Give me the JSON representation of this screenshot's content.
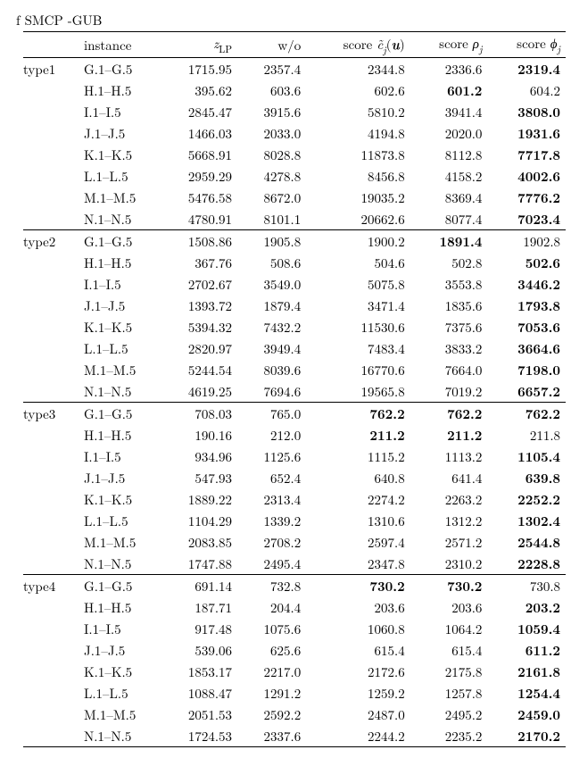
{
  "caption_fragment": "f SMCP -GUB",
  "headers": {
    "blank": "",
    "instance": "instance",
    "zlp_html": "<span class='ital'>z</span><span class='sub'>LP</span>",
    "wo": "w/o",
    "score_c_html": "score <span class='ital'>c̃</span><span class='sub ital'>j</span>(<span class='ital'><b>u</b></span>)",
    "score_rho_html": "score <span class='ital'>ρ</span><span class='sub ital'>j</span>",
    "score_phi_html": "score <span class='ital'>ϕ</span><span class='sub ital'>j</span>"
  },
  "groups": [
    {
      "type": "type1",
      "rows": [
        {
          "inst": "G.1–G.5",
          "zlp": "1715.95",
          "wo": "2357.4",
          "c": "2344.8",
          "rho": "2336.6",
          "phi": "2319.4",
          "b": [
            "phi"
          ]
        },
        {
          "inst": "H.1–H.5",
          "zlp": "395.62",
          "wo": "603.6",
          "c": "602.6",
          "rho": "601.2",
          "phi": "604.2",
          "b": [
            "rho"
          ]
        },
        {
          "inst": "I.1–I.5",
          "zlp": "2845.47",
          "wo": "3915.6",
          "c": "5810.2",
          "rho": "3941.4",
          "phi": "3808.0",
          "b": [
            "phi"
          ]
        },
        {
          "inst": "J.1–J.5",
          "zlp": "1466.03",
          "wo": "2033.0",
          "c": "4194.8",
          "rho": "2020.0",
          "phi": "1931.6",
          "b": [
            "phi"
          ]
        },
        {
          "inst": "K.1–K.5",
          "zlp": "5668.91",
          "wo": "8028.8",
          "c": "11873.8",
          "rho": "8112.8",
          "phi": "7717.8",
          "b": [
            "phi"
          ]
        },
        {
          "inst": "L.1–L.5",
          "zlp": "2959.29",
          "wo": "4278.8",
          "c": "8456.8",
          "rho": "4158.2",
          "phi": "4002.6",
          "b": [
            "phi"
          ]
        },
        {
          "inst": "M.1–M.5",
          "zlp": "5476.58",
          "wo": "8672.0",
          "c": "19035.2",
          "rho": "8369.4",
          "phi": "7776.2",
          "b": [
            "phi"
          ]
        },
        {
          "inst": "N.1–N.5",
          "zlp": "4780.91",
          "wo": "8101.1",
          "c": "20662.6",
          "rho": "8077.4",
          "phi": "7023.4",
          "b": [
            "phi"
          ]
        }
      ]
    },
    {
      "type": "type2",
      "rows": [
        {
          "inst": "G.1–G.5",
          "zlp": "1508.86",
          "wo": "1905.8",
          "c": "1900.2",
          "rho": "1891.4",
          "phi": "1902.8",
          "b": [
            "rho"
          ]
        },
        {
          "inst": "H.1–H.5",
          "zlp": "367.76",
          "wo": "508.6",
          "c": "504.6",
          "rho": "502.8",
          "phi": "502.6",
          "b": [
            "phi"
          ]
        },
        {
          "inst": "I.1–I.5",
          "zlp": "2702.67",
          "wo": "3549.0",
          "c": "5075.8",
          "rho": "3553.8",
          "phi": "3446.2",
          "b": [
            "phi"
          ]
        },
        {
          "inst": "J.1–J.5",
          "zlp": "1393.72",
          "wo": "1879.4",
          "c": "3471.4",
          "rho": "1835.6",
          "phi": "1793.8",
          "b": [
            "phi"
          ]
        },
        {
          "inst": "K.1–K.5",
          "zlp": "5394.32",
          "wo": "7432.2",
          "c": "11530.6",
          "rho": "7375.6",
          "phi": "7053.6",
          "b": [
            "phi"
          ]
        },
        {
          "inst": "L.1–L.5",
          "zlp": "2820.97",
          "wo": "3949.4",
          "c": "7483.4",
          "rho": "3833.2",
          "phi": "3664.6",
          "b": [
            "phi"
          ]
        },
        {
          "inst": "M.1–M.5",
          "zlp": "5244.54",
          "wo": "8039.6",
          "c": "16770.6",
          "rho": "7664.0",
          "phi": "7198.0",
          "b": [
            "phi"
          ]
        },
        {
          "inst": "N.1–N.5",
          "zlp": "4619.25",
          "wo": "7694.6",
          "c": "19565.8",
          "rho": "7019.2",
          "phi": "6657.2",
          "b": [
            "phi"
          ]
        }
      ]
    },
    {
      "type": "type3",
      "rows": [
        {
          "inst": "G.1–G.5",
          "zlp": "708.03",
          "wo": "765.0",
          "c": "762.2",
          "rho": "762.2",
          "phi": "762.2",
          "b": [
            "c",
            "rho",
            "phi"
          ]
        },
        {
          "inst": "H.1–H.5",
          "zlp": "190.16",
          "wo": "212.0",
          "c": "211.2",
          "rho": "211.2",
          "phi": "211.8",
          "b": [
            "c",
            "rho"
          ]
        },
        {
          "inst": "I.1–I.5",
          "zlp": "934.96",
          "wo": "1125.6",
          "c": "1115.2",
          "rho": "1113.2",
          "phi": "1105.4",
          "b": [
            "phi"
          ]
        },
        {
          "inst": "J.1–J.5",
          "zlp": "547.93",
          "wo": "652.4",
          "c": "640.8",
          "rho": "641.4",
          "phi": "639.8",
          "b": [
            "phi"
          ]
        },
        {
          "inst": "K.1–K.5",
          "zlp": "1889.22",
          "wo": "2313.4",
          "c": "2274.2",
          "rho": "2263.2",
          "phi": "2252.2",
          "b": [
            "phi"
          ]
        },
        {
          "inst": "L.1–L.5",
          "zlp": "1104.29",
          "wo": "1339.2",
          "c": "1310.6",
          "rho": "1312.2",
          "phi": "1302.4",
          "b": [
            "phi"
          ]
        },
        {
          "inst": "M.1–M.5",
          "zlp": "2083.85",
          "wo": "2708.2",
          "c": "2597.4",
          "rho": "2571.2",
          "phi": "2544.8",
          "b": [
            "phi"
          ]
        },
        {
          "inst": "N.1–N.5",
          "zlp": "1747.88",
          "wo": "2495.4",
          "c": "2347.8",
          "rho": "2310.2",
          "phi": "2228.8",
          "b": [
            "phi"
          ]
        }
      ]
    },
    {
      "type": "type4",
      "rows": [
        {
          "inst": "G.1–G.5",
          "zlp": "691.14",
          "wo": "732.8",
          "c": "730.2",
          "rho": "730.2",
          "phi": "730.8",
          "b": [
            "c",
            "rho"
          ]
        },
        {
          "inst": "H.1–H.5",
          "zlp": "187.71",
          "wo": "204.4",
          "c": "203.6",
          "rho": "203.6",
          "phi": "203.2",
          "b": [
            "phi"
          ]
        },
        {
          "inst": "I.1–I.5",
          "zlp": "917.48",
          "wo": "1075.6",
          "c": "1060.8",
          "rho": "1064.2",
          "phi": "1059.4",
          "b": [
            "phi"
          ]
        },
        {
          "inst": "J.1–J.5",
          "zlp": "539.06",
          "wo": "625.6",
          "c": "615.4",
          "rho": "615.4",
          "phi": "611.2",
          "b": [
            "phi"
          ]
        },
        {
          "inst": "K.1–K.5",
          "zlp": "1853.17",
          "wo": "2217.0",
          "c": "2172.6",
          "rho": "2175.8",
          "phi": "2161.8",
          "b": [
            "phi"
          ]
        },
        {
          "inst": "L.1–L.5",
          "zlp": "1088.47",
          "wo": "1291.2",
          "c": "1259.2",
          "rho": "1257.8",
          "phi": "1254.4",
          "b": [
            "phi"
          ]
        },
        {
          "inst": "M.1–M.5",
          "zlp": "2051.53",
          "wo": "2592.2",
          "c": "2487.0",
          "rho": "2495.2",
          "phi": "2459.0",
          "b": [
            "phi"
          ]
        },
        {
          "inst": "N.1–N.5",
          "zlp": "1724.53",
          "wo": "2337.6",
          "c": "2244.2",
          "rho": "2235.2",
          "phi": "2170.2",
          "b": [
            "phi"
          ]
        }
      ]
    }
  ]
}
